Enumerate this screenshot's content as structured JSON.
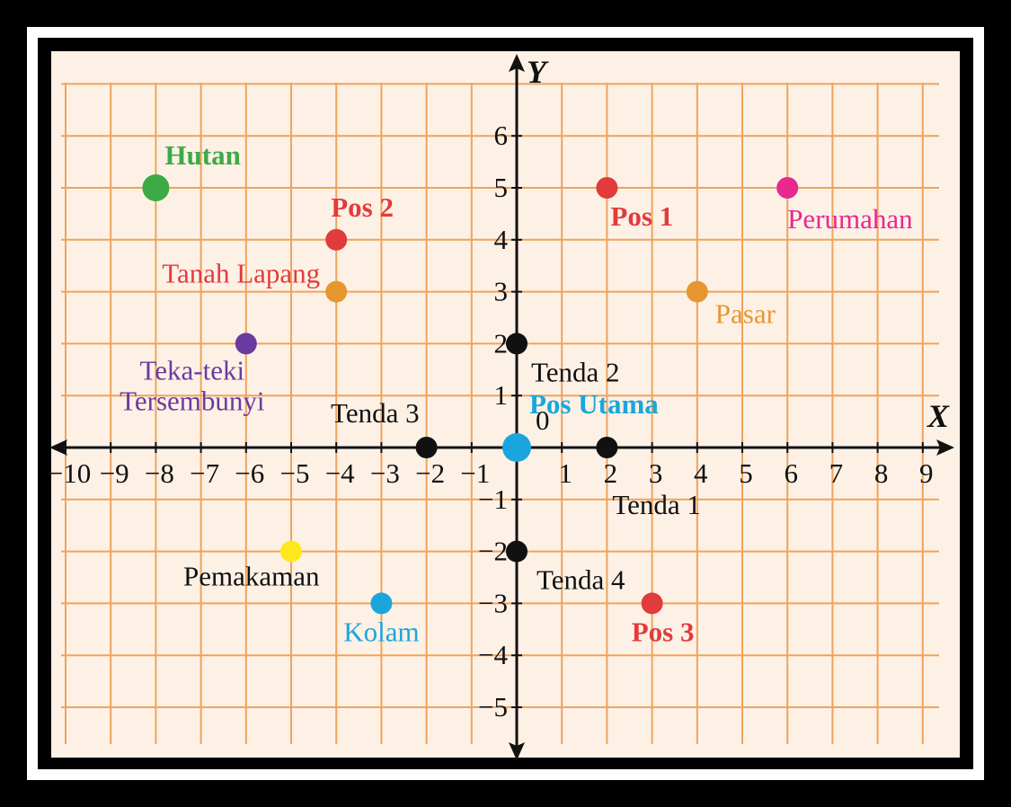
{
  "chart_data": {
    "type": "scatter",
    "title": "",
    "xlabel": "X",
    "ylabel": "Y",
    "origin_label": "0",
    "xlim": [
      -10,
      9
    ],
    "ylim": [
      -5,
      6
    ],
    "x_ticks": [
      "−10",
      "−9",
      "−8",
      "−7",
      "−6",
      "−5",
      "−4",
      "−3",
      "−2",
      "−1",
      "1",
      "2",
      "3",
      "4",
      "5",
      "6",
      "7",
      "8",
      "9"
    ],
    "x_tick_values": [
      -10,
      -9,
      -8,
      -7,
      -6,
      -5,
      -4,
      -3,
      -2,
      -1,
      1,
      2,
      3,
      4,
      5,
      6,
      7,
      8,
      9
    ],
    "y_ticks": [
      "6",
      "5",
      "4",
      "3",
      "2",
      "1",
      "−1",
      "−2",
      "−3",
      "−4",
      "−5"
    ],
    "y_tick_values": [
      6,
      5,
      4,
      3,
      2,
      1,
      -1,
      -2,
      -3,
      -4,
      -5
    ],
    "grid": true,
    "colors": {
      "frame": "#000000",
      "background": "#fdf1e6",
      "grid": "#f0a35a",
      "axis": "#111111"
    },
    "points": [
      {
        "name": "Hutan",
        "x": -8,
        "y": 5,
        "color": "#3daa46",
        "bold": true
      },
      {
        "name": "Pos 2",
        "x": -4,
        "y": 4,
        "color": "#e23b3b",
        "bold": true
      },
      {
        "name": "Tanah Lapang",
        "x": -4,
        "y": 3,
        "color": "#e8962f",
        "label_color": "#e23b3b",
        "bold": false
      },
      {
        "name": "Teka-teki Tersembunyi",
        "lines": [
          "Teka-teki",
          "Tersembunyi"
        ],
        "x": -6,
        "y": 2,
        "color": "#6b3aa0",
        "bold": false
      },
      {
        "name": "Pos 1",
        "x": 2,
        "y": 5,
        "color": "#e23b3b",
        "bold": true
      },
      {
        "name": "Perumahan",
        "x": 6,
        "y": 5,
        "color": "#e8288f",
        "bold": false
      },
      {
        "name": "Pasar",
        "x": 4,
        "y": 3,
        "color": "#e8962f",
        "bold": false
      },
      {
        "name": "Tenda 2",
        "x": 0,
        "y": 2,
        "color": "#111111",
        "bold": false
      },
      {
        "name": "Pos Utama",
        "x": 0,
        "y": 0,
        "color": "#1aa6dc",
        "bold": true
      },
      {
        "name": "Tenda 3",
        "x": -2,
        "y": 0,
        "color": "#111111",
        "bold": false
      },
      {
        "name": "Tenda 1",
        "x": 2,
        "y": 0,
        "color": "#111111",
        "bold": false
      },
      {
        "name": "Tenda 4",
        "x": 0,
        "y": -2,
        "color": "#111111",
        "bold": false
      },
      {
        "name": "Pemakaman",
        "x": -5,
        "y": -2,
        "color": "#ffe81a",
        "label_color": "#111111",
        "bold": false
      },
      {
        "name": "Kolam",
        "x": -3,
        "y": -3,
        "color": "#1aa6dc",
        "bold": false
      },
      {
        "name": "Pos 3",
        "x": 3,
        "y": -3,
        "color": "#e23b3b",
        "bold": true
      }
    ]
  }
}
